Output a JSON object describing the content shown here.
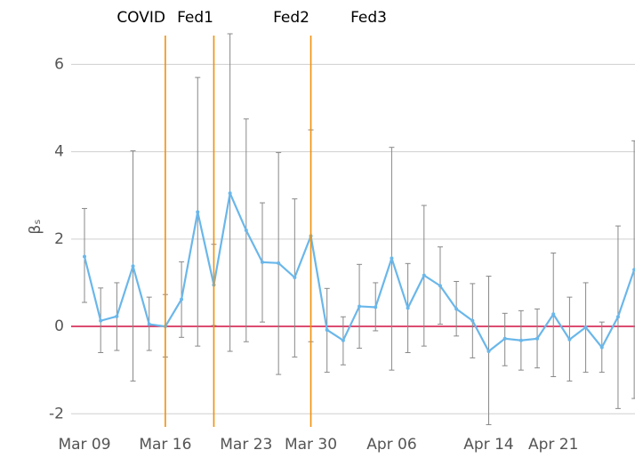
{
  "chart_data": {
    "type": "line",
    "y_label": "βₛ",
    "categories": [
      "Mar 09",
      null,
      null,
      null,
      null,
      "Mar 16",
      null,
      null,
      null,
      null,
      "Mar 23",
      null,
      null,
      null,
      "Mar 30",
      null,
      null,
      null,
      null,
      "Apr 06",
      null,
      null,
      null,
      null,
      null,
      "Apr 14",
      null,
      null,
      null,
      "Apr 21",
      null,
      null,
      null,
      null,
      null
    ],
    "series": [
      {
        "color": "#6ab7ea",
        "values": [
          1.6,
          0.13,
          0.23,
          1.38,
          0.05,
          0.0,
          0.62,
          2.62,
          0.95,
          3.05,
          2.2,
          1.47,
          1.45,
          1.12,
          2.07,
          -0.08,
          -0.32,
          0.46,
          0.44,
          1.56,
          0.42,
          1.17,
          0.93,
          0.4,
          0.13,
          -0.57,
          -0.28,
          -0.32,
          -0.28,
          0.28,
          -0.3,
          -0.02,
          -0.48,
          0.22,
          1.3
        ],
        "lower": [
          0.55,
          -0.6,
          -0.55,
          -1.25,
          -0.55,
          -0.7,
          -0.25,
          -0.45,
          0.02,
          -0.57,
          -0.35,
          0.1,
          -1.1,
          -0.7,
          -0.35,
          -1.05,
          -0.88,
          -0.5,
          -0.1,
          -1.0,
          -0.6,
          -0.45,
          0.05,
          -0.22,
          -0.72,
          -2.25,
          -0.9,
          -1.0,
          -0.95,
          -1.15,
          -1.25,
          -1.05,
          -1.05,
          -1.88,
          -1.65
        ],
        "upper": [
          2.7,
          0.88,
          1.0,
          4.02,
          0.67,
          0.73,
          1.48,
          5.7,
          1.88,
          6.7,
          4.75,
          2.83,
          3.98,
          2.92,
          4.5,
          0.87,
          0.22,
          1.42,
          1.0,
          4.1,
          1.44,
          2.77,
          1.82,
          1.03,
          0.98,
          1.15,
          0.3,
          0.36,
          0.4,
          1.68,
          0.67,
          1.0,
          0.1,
          2.3,
          4.25
        ]
      }
    ],
    "error_color": "#888888",
    "ylim": [
      -2.3,
      6.7
    ],
    "yticks": [
      -2,
      0,
      2,
      4,
      6
    ],
    "grid": true,
    "reference_line": 0,
    "reference_color": "#d01040",
    "event_lines": [
      5,
      8,
      14
    ],
    "event_color": "#f0900a",
    "annotations": [
      "COVID",
      "Fed1",
      "Fed2",
      "Fed3"
    ]
  }
}
